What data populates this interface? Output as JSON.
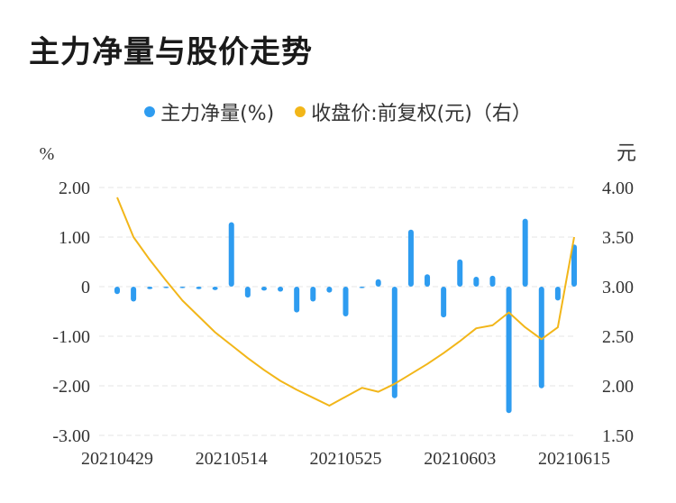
{
  "title": "主力净量与股价走势",
  "colors": {
    "bar": "#2E9CF0",
    "line": "#F2B619",
    "grid": "#e6e6e6",
    "text": "#333333"
  },
  "chart_data": {
    "type": "bar",
    "legend_position": "top-center",
    "grid": true,
    "left_unit": "%",
    "right_unit": "元",
    "series": [
      {
        "name": "主力净量(%)",
        "type": "bar",
        "axis": "left",
        "values": [
          -0.15,
          -0.3,
          -0.05,
          -0.03,
          -0.03,
          -0.05,
          -0.07,
          1.3,
          -0.22,
          -0.08,
          -0.1,
          -0.52,
          -0.3,
          -0.12,
          -0.6,
          -0.03,
          0.15,
          -2.25,
          1.15,
          0.25,
          -0.62,
          0.55,
          0.2,
          0.22,
          -2.55,
          1.37,
          -2.05,
          -0.28,
          0.85
        ]
      },
      {
        "name": "收盘价:前复权(元)（右）",
        "type": "line",
        "axis": "right",
        "values": [
          3.9,
          3.5,
          3.27,
          3.06,
          2.86,
          2.7,
          2.54,
          2.41,
          2.28,
          2.16,
          2.05,
          1.96,
          1.88,
          1.8,
          1.89,
          1.98,
          1.94,
          2.02,
          2.12,
          2.22,
          2.33,
          2.45,
          2.58,
          2.61,
          2.74,
          2.59,
          2.47,
          2.59,
          3.5
        ]
      }
    ],
    "x_ticks": [
      {
        "index": 0,
        "label": "20210429"
      },
      {
        "index": 7,
        "label": "20210514"
      },
      {
        "index": 14,
        "label": "20210525"
      },
      {
        "index": 21,
        "label": "20210603"
      },
      {
        "index": 28,
        "label": "20210615"
      }
    ],
    "y_left": {
      "min": -3,
      "max": 2,
      "ticks": [
        "2.00",
        "1.00",
        "0",
        "-1.00",
        "-2.00",
        "-3.00"
      ],
      "tick_values": [
        2,
        1,
        0,
        -1,
        -2,
        -3
      ]
    },
    "y_right": {
      "min": 1.5,
      "max": 4.0,
      "ticks": [
        "4.00",
        "3.50",
        "3.00",
        "2.50",
        "2.00",
        "1.50"
      ],
      "tick_values": [
        4.0,
        3.5,
        3.0,
        2.5,
        2.0,
        1.5
      ]
    }
  }
}
